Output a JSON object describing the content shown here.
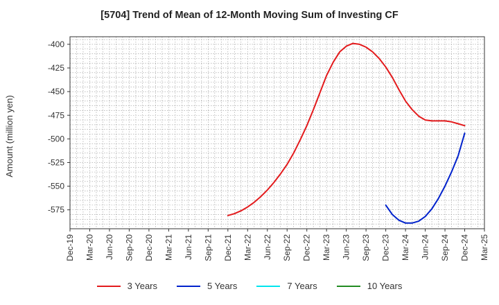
{
  "chart_data": {
    "type": "line",
    "title": "[5704]  Trend of Mean of 12-Month Moving Sum of Investing CF",
    "xlabel": "",
    "ylabel": "Amount (million yen)",
    "ylim": [
      -595,
      -392
    ],
    "y_ticks": [
      -400,
      -425,
      -450,
      -475,
      -500,
      -525,
      -550,
      -575
    ],
    "x_ticks": [
      "Dec-19",
      "Mar-20",
      "Jun-20",
      "Sep-20",
      "Dec-20",
      "Mar-21",
      "Jun-21",
      "Sep-21",
      "Dec-21",
      "Mar-22",
      "Jun-22",
      "Sep-22",
      "Dec-22",
      "Mar-23",
      "Jun-23",
      "Sep-23",
      "Dec-23",
      "Mar-24",
      "Jun-24",
      "Sep-24",
      "Dec-24",
      "Mar-25"
    ],
    "x_month_range": [
      0,
      63
    ],
    "grid": true,
    "series": [
      {
        "name": "3 Years",
        "color": "#e31a1c",
        "x": [
          24,
          25,
          26,
          27,
          28,
          29,
          30,
          31,
          32,
          33,
          34,
          35,
          36,
          37,
          38,
          39,
          40,
          41,
          42,
          43,
          44,
          45,
          46,
          47,
          48,
          49,
          50,
          51,
          52,
          53,
          54,
          55,
          56,
          57,
          58,
          59,
          60
        ],
        "values": [
          -581,
          -579,
          -576,
          -572,
          -567,
          -561,
          -554,
          -546,
          -537,
          -527,
          -515,
          -501,
          -486,
          -469,
          -451,
          -433,
          -419,
          -408,
          -402,
          -399,
          -400,
          -403,
          -408,
          -415,
          -424,
          -435,
          -448,
          -460,
          -469,
          -476,
          -480,
          -481,
          -481,
          -481,
          -482,
          -484,
          -486
        ]
      },
      {
        "name": "5 Years",
        "color": "#0022cc",
        "x": [
          48,
          49,
          50,
          51,
          52,
          53,
          54,
          55,
          56,
          57,
          58,
          59,
          60
        ],
        "values": [
          -570,
          -580,
          -586,
          -589,
          -589,
          -587,
          -582,
          -574,
          -563,
          -550,
          -535,
          -518,
          -494
        ]
      },
      {
        "name": "7 Years",
        "color": "#00e5ee",
        "x": [],
        "values": []
      },
      {
        "name": "10 Years",
        "color": "#228b22",
        "x": [],
        "values": []
      }
    ]
  }
}
